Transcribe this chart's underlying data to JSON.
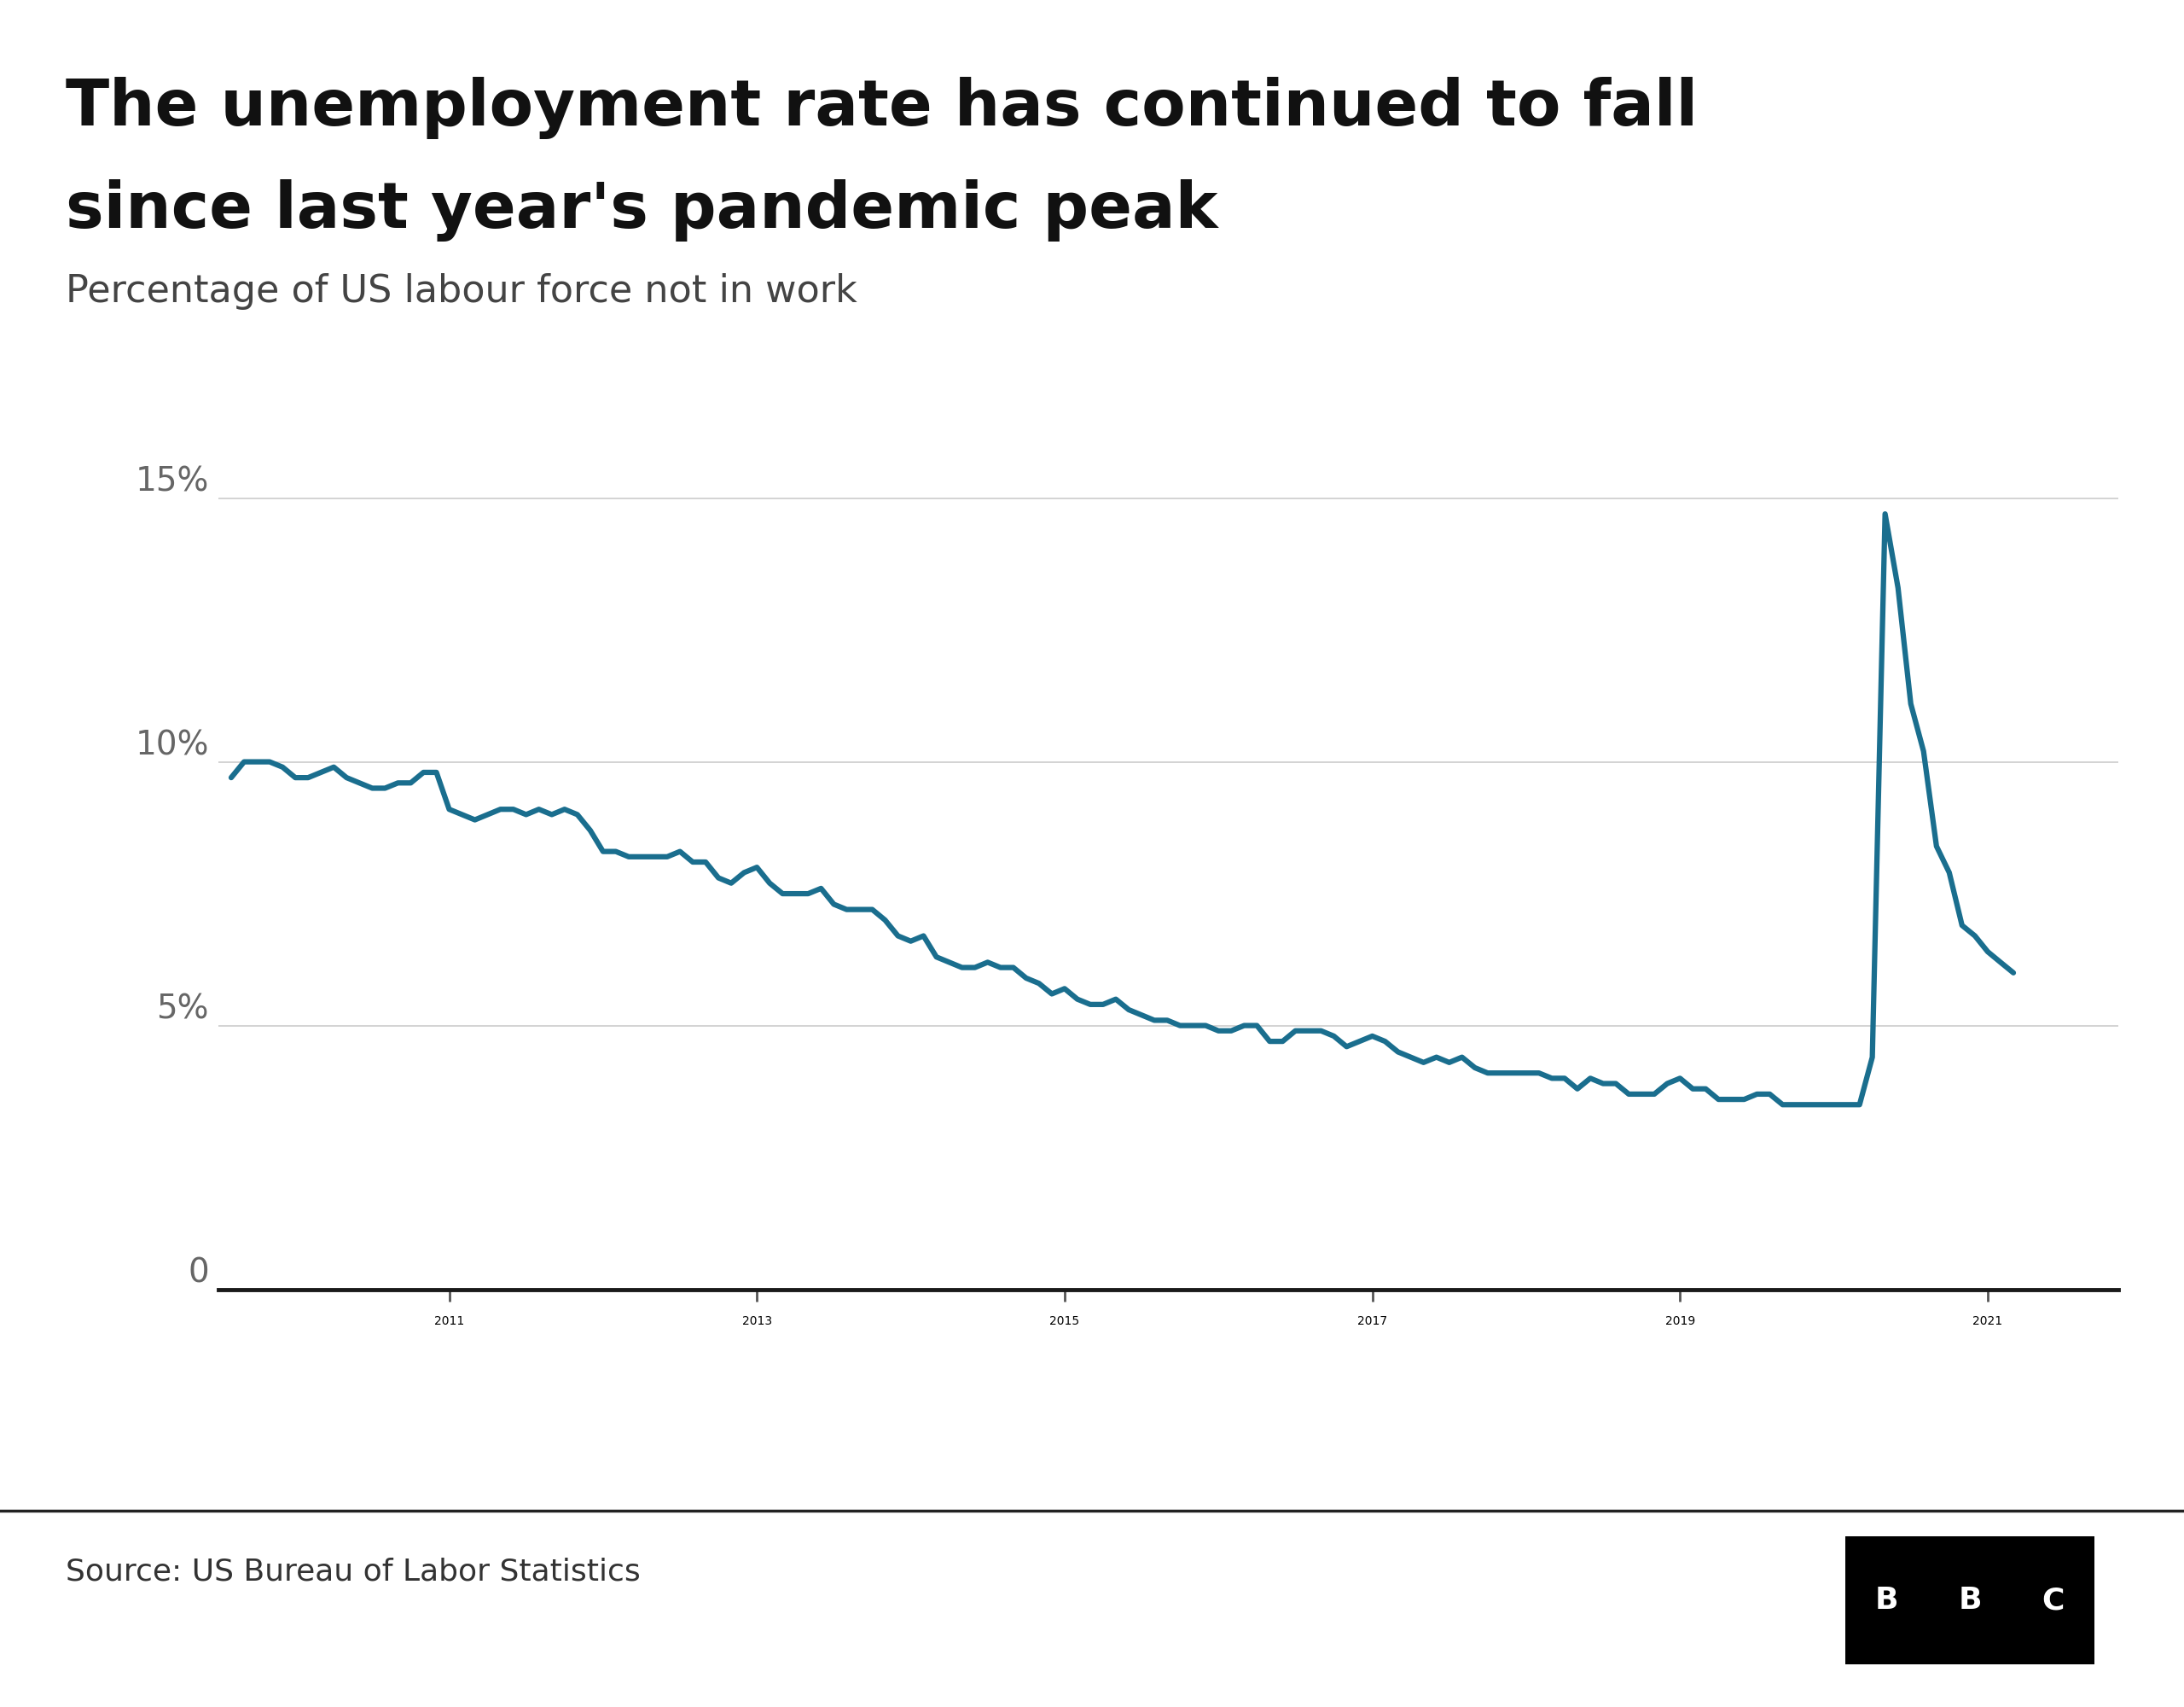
{
  "title_line1": "The unemployment rate has continued to fall",
  "title_line2": "since last year's pandemic peak",
  "subtitle": "Percentage of US labour force not in work",
  "source": "Source: US Bureau of Labor Statistics",
  "line_color": "#1a6e8e",
  "line_width": 4.5,
  "background_color": "#ffffff",
  "yticks": [
    0,
    5,
    10,
    15
  ],
  "ytick_labels": [
    "0",
    "5%",
    "10%",
    "15%"
  ],
  "xticks": [
    2011,
    2013,
    2015,
    2017,
    2019,
    2021
  ],
  "ylim": [
    -0.8,
    17
  ],
  "xlim_start": 2009.5,
  "xlim_end": 2021.85,
  "data": [
    [
      2009.583,
      9.7
    ],
    [
      2009.667,
      10.0
    ],
    [
      2009.75,
      10.0
    ],
    [
      2009.833,
      10.0
    ],
    [
      2009.917,
      9.9
    ],
    [
      2010.0,
      9.7
    ],
    [
      2010.083,
      9.7
    ],
    [
      2010.167,
      9.8
    ],
    [
      2010.25,
      9.9
    ],
    [
      2010.333,
      9.7
    ],
    [
      2010.417,
      9.6
    ],
    [
      2010.5,
      9.5
    ],
    [
      2010.583,
      9.5
    ],
    [
      2010.667,
      9.6
    ],
    [
      2010.75,
      9.6
    ],
    [
      2010.833,
      9.8
    ],
    [
      2010.917,
      9.8
    ],
    [
      2011.0,
      9.1
    ],
    [
      2011.083,
      9.0
    ],
    [
      2011.167,
      8.9
    ],
    [
      2011.25,
      9.0
    ],
    [
      2011.333,
      9.1
    ],
    [
      2011.417,
      9.1
    ],
    [
      2011.5,
      9.0
    ],
    [
      2011.583,
      9.1
    ],
    [
      2011.667,
      9.0
    ],
    [
      2011.75,
      9.1
    ],
    [
      2011.833,
      9.0
    ],
    [
      2011.917,
      8.7
    ],
    [
      2012.0,
      8.3
    ],
    [
      2012.083,
      8.3
    ],
    [
      2012.167,
      8.2
    ],
    [
      2012.25,
      8.2
    ],
    [
      2012.333,
      8.2
    ],
    [
      2012.417,
      8.2
    ],
    [
      2012.5,
      8.3
    ],
    [
      2012.583,
      8.1
    ],
    [
      2012.667,
      8.1
    ],
    [
      2012.75,
      7.8
    ],
    [
      2012.833,
      7.7
    ],
    [
      2012.917,
      7.9
    ],
    [
      2013.0,
      8.0
    ],
    [
      2013.083,
      7.7
    ],
    [
      2013.167,
      7.5
    ],
    [
      2013.25,
      7.5
    ],
    [
      2013.333,
      7.5
    ],
    [
      2013.417,
      7.6
    ],
    [
      2013.5,
      7.3
    ],
    [
      2013.583,
      7.2
    ],
    [
      2013.667,
      7.2
    ],
    [
      2013.75,
      7.2
    ],
    [
      2013.833,
      7.0
    ],
    [
      2013.917,
      6.7
    ],
    [
      2014.0,
      6.6
    ],
    [
      2014.083,
      6.7
    ],
    [
      2014.167,
      6.3
    ],
    [
      2014.25,
      6.2
    ],
    [
      2014.333,
      6.1
    ],
    [
      2014.417,
      6.1
    ],
    [
      2014.5,
      6.2
    ],
    [
      2014.583,
      6.1
    ],
    [
      2014.667,
      6.1
    ],
    [
      2014.75,
      5.9
    ],
    [
      2014.833,
      5.8
    ],
    [
      2014.917,
      5.6
    ],
    [
      2015.0,
      5.7
    ],
    [
      2015.083,
      5.5
    ],
    [
      2015.167,
      5.4
    ],
    [
      2015.25,
      5.4
    ],
    [
      2015.333,
      5.5
    ],
    [
      2015.417,
      5.3
    ],
    [
      2015.5,
      5.2
    ],
    [
      2015.583,
      5.1
    ],
    [
      2015.667,
      5.1
    ],
    [
      2015.75,
      5.0
    ],
    [
      2015.833,
      5.0
    ],
    [
      2015.917,
      5.0
    ],
    [
      2016.0,
      4.9
    ],
    [
      2016.083,
      4.9
    ],
    [
      2016.167,
      5.0
    ],
    [
      2016.25,
      5.0
    ],
    [
      2016.333,
      4.7
    ],
    [
      2016.417,
      4.7
    ],
    [
      2016.5,
      4.9
    ],
    [
      2016.583,
      4.9
    ],
    [
      2016.667,
      4.9
    ],
    [
      2016.75,
      4.8
    ],
    [
      2016.833,
      4.6
    ],
    [
      2016.917,
      4.7
    ],
    [
      2017.0,
      4.8
    ],
    [
      2017.083,
      4.7
    ],
    [
      2017.167,
      4.5
    ],
    [
      2017.25,
      4.4
    ],
    [
      2017.333,
      4.3
    ],
    [
      2017.417,
      4.4
    ],
    [
      2017.5,
      4.3
    ],
    [
      2017.583,
      4.4
    ],
    [
      2017.667,
      4.2
    ],
    [
      2017.75,
      4.1
    ],
    [
      2017.833,
      4.1
    ],
    [
      2017.917,
      4.1
    ],
    [
      2018.0,
      4.1
    ],
    [
      2018.083,
      4.1
    ],
    [
      2018.167,
      4.0
    ],
    [
      2018.25,
      4.0
    ],
    [
      2018.333,
      3.8
    ],
    [
      2018.417,
      4.0
    ],
    [
      2018.5,
      3.9
    ],
    [
      2018.583,
      3.9
    ],
    [
      2018.667,
      3.7
    ],
    [
      2018.75,
      3.7
    ],
    [
      2018.833,
      3.7
    ],
    [
      2018.917,
      3.9
    ],
    [
      2019.0,
      4.0
    ],
    [
      2019.083,
      3.8
    ],
    [
      2019.167,
      3.8
    ],
    [
      2019.25,
      3.6
    ],
    [
      2019.333,
      3.6
    ],
    [
      2019.417,
      3.6
    ],
    [
      2019.5,
      3.7
    ],
    [
      2019.583,
      3.7
    ],
    [
      2019.667,
      3.5
    ],
    [
      2019.75,
      3.5
    ],
    [
      2019.833,
      3.5
    ],
    [
      2019.917,
      3.5
    ],
    [
      2020.0,
      3.5
    ],
    [
      2020.083,
      3.5
    ],
    [
      2020.167,
      3.5
    ],
    [
      2020.25,
      4.4
    ],
    [
      2020.333,
      14.7
    ],
    [
      2020.417,
      13.3
    ],
    [
      2020.5,
      11.1
    ],
    [
      2020.583,
      10.2
    ],
    [
      2020.667,
      8.4
    ],
    [
      2020.75,
      7.9
    ],
    [
      2020.833,
      6.9
    ],
    [
      2020.917,
      6.7
    ],
    [
      2021.0,
      6.4
    ],
    [
      2021.083,
      6.2
    ],
    [
      2021.167,
      6.0
    ]
  ]
}
